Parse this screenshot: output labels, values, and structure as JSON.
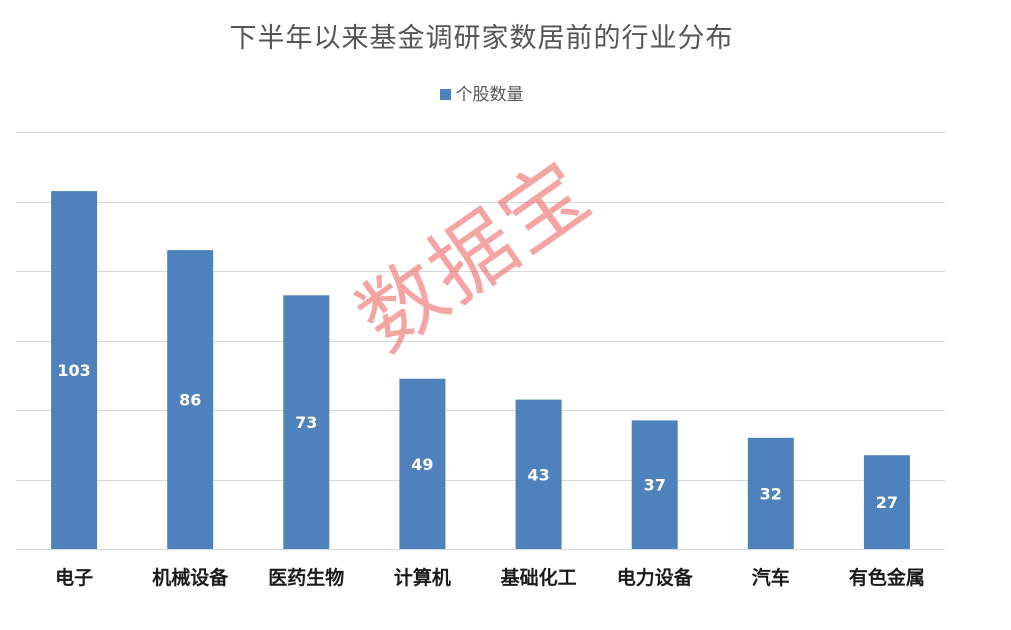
{
  "chart_data": {
    "type": "bar",
    "title": "下半年以来基金调研家数居前的行业分布",
    "legend": "个股数量",
    "legend_position": "top",
    "categories": [
      "电子",
      "机械设备",
      "医药生物",
      "计算机",
      "基础化工",
      "电力设备",
      "汽车",
      "有色金属"
    ],
    "series": [
      {
        "name": "个股数量",
        "values": [
          103,
          86,
          73,
          49,
          43,
          37,
          32,
          27
        ],
        "color": "#4F81BD"
      }
    ],
    "ylim": [
      0,
      120
    ],
    "gridlines": true,
    "y_ticks_visible": false,
    "data_labels": true
  },
  "watermark": "数据宝"
}
